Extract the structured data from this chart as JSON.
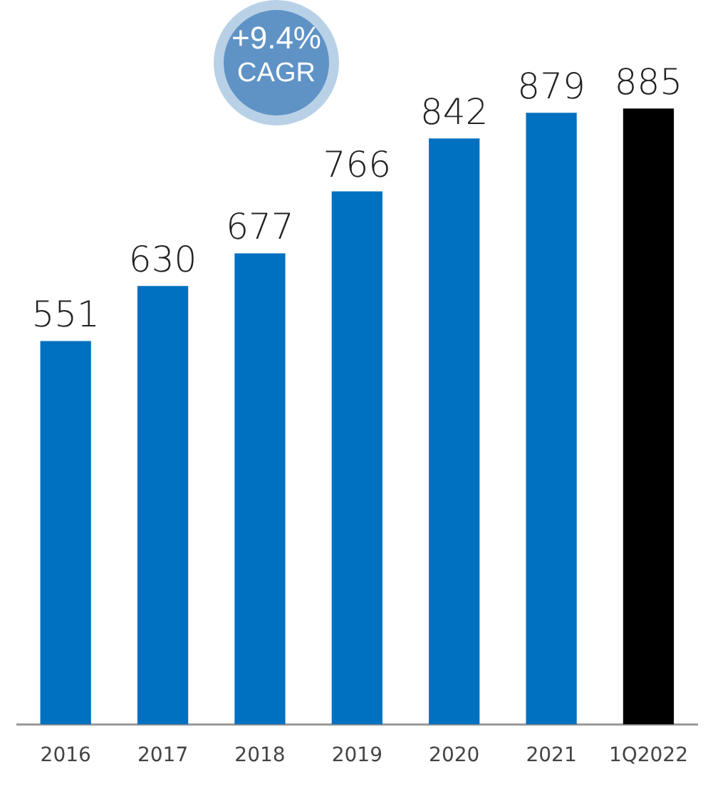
{
  "chart_data": {
    "type": "bar",
    "categories": [
      "2016",
      "2017",
      "2018",
      "2019",
      "2020",
      "2021",
      "1Q2022"
    ],
    "values": [
      551,
      630,
      677,
      766,
      842,
      879,
      885
    ],
    "colors": [
      "#0070c0",
      "#0070c0",
      "#0070c0",
      "#0070c0",
      "#0070c0",
      "#0070c0",
      "#000000"
    ],
    "data_labels": true,
    "grid": false,
    "legend": false,
    "annotations": [
      "+9.4%",
      "CAGR"
    ]
  }
}
